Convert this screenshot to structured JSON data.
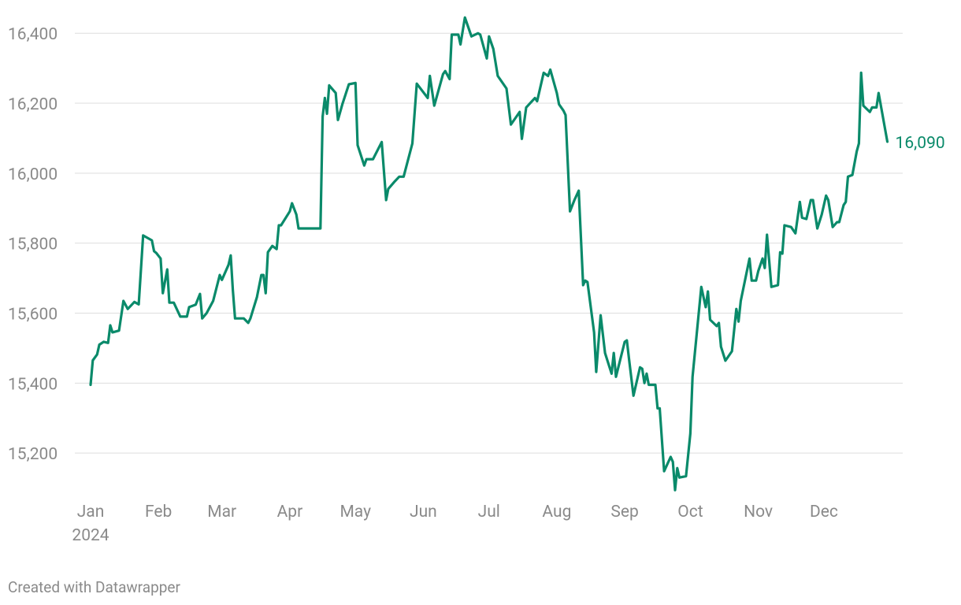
{
  "chart_data": {
    "type": "line",
    "color": "#0a8a6a",
    "x": [
      1,
      2,
      4,
      5,
      7,
      9,
      10,
      11,
      14,
      16,
      18,
      21,
      23,
      25,
      29,
      30,
      31,
      33,
      34,
      36,
      37,
      39,
      42,
      45,
      46,
      49,
      51,
      52,
      54,
      57,
      60,
      61,
      64,
      65,
      66,
      67,
      71,
      73,
      74,
      77,
      79,
      80,
      81,
      82,
      84,
      86,
      87,
      88,
      92,
      93,
      95,
      96,
      106,
      107,
      108,
      109,
      110,
      113,
      114,
      116,
      119,
      122,
      123,
      126,
      127,
      130,
      134,
      136,
      137,
      140,
      142,
      144,
      148,
      150,
      155,
      156,
      158,
      162,
      163,
      165,
      166,
      169,
      170,
      172,
      175,
      178,
      179,
      182,
      183,
      185,
      187,
      191,
      193,
      197,
      198,
      200,
      204,
      205,
      208,
      210,
      211,
      214,
      215,
      217,
      218,
      220,
      222,
      224,
      226,
      227,
      228,
      231,
      232,
      234,
      236,
      239,
      240,
      241,
      243,
      245,
      246,
      247,
      249,
      252,
      253,
      254,
      255,
      256,
      259,
      260,
      261,
      263,
      266,
      267,
      268,
      269,
      270,
      273,
      275,
      276,
      280,
      282,
      283,
      284,
      287,
      288,
      289,
      291,
      294,
      296,
      297,
      298,
      302,
      303,
      305,
      306,
      308,
      309,
      310,
      312,
      315,
      316,
      317,
      318,
      321,
      323,
      325,
      326,
      328,
      330,
      331,
      333,
      335,
      337,
      338,
      340,
      342,
      343,
      345,
      346,
      347,
      349,
      351,
      352,
      353,
      354,
      357,
      358,
      360,
      361,
      365
    ],
    "values": [
      15395,
      15465,
      15482,
      15510,
      15518,
      15515,
      15565,
      15545,
      15550,
      15635,
      15612,
      15632,
      15625,
      15822,
      15808,
      15777,
      15772,
      15756,
      15657,
      15725,
      15630,
      15630,
      15590,
      15590,
      15617,
      15624,
      15655,
      15585,
      15600,
      15635,
      15709,
      15695,
      15738,
      15765,
      15666,
      15585,
      15585,
      15572,
      15585,
      15646,
      15709,
      15709,
      15657,
      15774,
      15792,
      15783,
      15851,
      15851,
      15891,
      15914,
      15882,
      15842,
      15842,
      16162,
      16215,
      16170,
      16251,
      16229,
      16152,
      16197,
      16254,
      16258,
      16080,
      16022,
      16040,
      16040,
      16089,
      15923,
      15955,
      15977,
      15990,
      15990,
      16085,
      16256,
      16215,
      16278,
      16193,
      16283,
      16292,
      16269,
      16396,
      16396,
      16368,
      16445,
      16391,
      16400,
      16396,
      16328,
      16391,
      16355,
      16278,
      16242,
      16139,
      16175,
      16098,
      16188,
      16215,
      16206,
      16287,
      16278,
      16296,
      16229,
      16197,
      16179,
      16166,
      15891,
      15923,
      15950,
      15680,
      15693,
      15689,
      15545,
      15432,
      15594,
      15486,
      15427,
      15486,
      15418,
      15468,
      15518,
      15522,
      15468,
      15364,
      15445,
      15441,
      15400,
      15427,
      15395,
      15395,
      15328,
      15328,
      15148,
      15189,
      15175,
      15094,
      15157,
      15130,
      15134,
      15256,
      15418,
      15675,
      15617,
      15662,
      15581,
      15563,
      15572,
      15504,
      15464,
      15491,
      15612,
      15576,
      15635,
      15756,
      15693,
      15693,
      15720,
      15756,
      15729,
      15824,
      15675,
      15680,
      15774,
      15770,
      15851,
      15846,
      15828,
      15918,
      15873,
      15869,
      15923,
      15923,
      15842,
      15882,
      15936,
      15923,
      15846,
      15860,
      15860,
      15909,
      15918,
      15990,
      15995,
      16062,
      16085,
      16287,
      16193,
      16175,
      16188,
      16188,
      16229,
      16090
    ],
    "end_label": {
      "value": 16090,
      "label": "16,090"
    },
    "xlim": [
      1,
      372
    ],
    "xticks": [
      {
        "value": 1,
        "label": "Jan"
      },
      {
        "value": 32,
        "label": "Feb"
      },
      {
        "value": 61,
        "label": "Mar"
      },
      {
        "value": 92,
        "label": "Apr"
      },
      {
        "value": 122,
        "label": "May"
      },
      {
        "value": 153,
        "label": "Jun"
      },
      {
        "value": 183,
        "label": "Jul"
      },
      {
        "value": 214,
        "label": "Aug"
      },
      {
        "value": 245,
        "label": "Sep"
      },
      {
        "value": 275,
        "label": "Oct"
      },
      {
        "value": 306,
        "label": "Nov"
      },
      {
        "value": 336,
        "label": "Dec"
      }
    ],
    "x_year": "2024",
    "ylim": [
      15090,
      16450
    ],
    "yticks": [
      {
        "value": 15200,
        "label": "15,200"
      },
      {
        "value": 15400,
        "label": "15,400"
      },
      {
        "value": 15600,
        "label": "15,600"
      },
      {
        "value": 15800,
        "label": "15,800"
      },
      {
        "value": 16000,
        "label": "16,000"
      },
      {
        "value": 16200,
        "label": "16,200"
      },
      {
        "value": 16400,
        "label": "16,400"
      }
    ],
    "grid": true,
    "credit": "Created with Datawrapper"
  }
}
